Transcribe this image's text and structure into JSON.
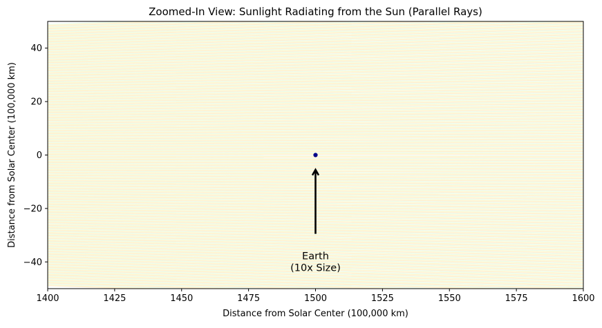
{
  "chart_data": {
    "type": "scatter",
    "title": "Zoomed-In View: Sunlight Radiating from the Sun (Parallel Rays)",
    "xlabel": "Distance from Solar Center (100,000 km)",
    "ylabel": "Distance from Solar Center (100,000 km)",
    "xlim": [
      1400,
      1600
    ],
    "ylim": [
      -50,
      50
    ],
    "xticks": [
      1400,
      1425,
      1450,
      1475,
      1500,
      1525,
      1550,
      1575,
      1600
    ],
    "yticks": [
      -40,
      -20,
      0,
      20,
      40
    ],
    "grid": false,
    "earth": {
      "x": 1500,
      "y": 0,
      "color": "#00008b"
    },
    "annotation": {
      "text_line1": "Earth",
      "text_line2": "(10x Size)",
      "text_x": 1500,
      "text_y": -40,
      "arrow_tip_y": -5.5,
      "arrow_tail_y": -29.5
    },
    "rays": {
      "angle_min_deg": -2.0,
      "angle_max_deg": 2.0,
      "count": 300,
      "palette": [
        "#ffa500",
        "#ffd700",
        "#90ee90"
      ]
    }
  }
}
